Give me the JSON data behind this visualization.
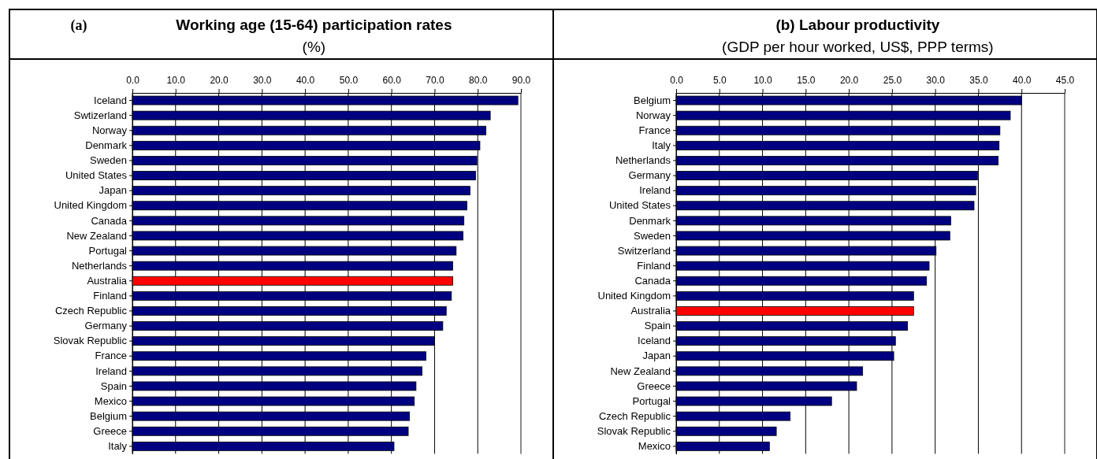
{
  "chart_data": [
    {
      "type": "bar",
      "orientation": "horizontal",
      "title": "Working age (15-64) participation rates",
      "subtitle": "(%)",
      "annotations": [
        "(a)"
      ],
      "categories": [
        "Iceland",
        "Swtizerland",
        "Norway",
        "Denmark",
        "Sweden",
        "United States",
        "Japan",
        "United Kingdom",
        "Canada",
        "New Zealand",
        "Portugal",
        "Netherlands",
        "Australia",
        "Finland",
        "Czech Republic",
        "Germany",
        "Slovak Republic",
        "France",
        "Ireland",
        "Spain",
        "Mexico",
        "Belgium",
        "Greece",
        "Italy"
      ],
      "values": [
        89.3,
        82.9,
        81.9,
        80.5,
        79.8,
        79.5,
        78.2,
        77.5,
        76.8,
        76.6,
        75.0,
        74.2,
        74.2,
        73.9,
        72.7,
        71.9,
        69.9,
        68.0,
        67.1,
        65.7,
        65.3,
        64.2,
        63.9,
        60.6
      ],
      "colors": [
        "#000080",
        "#000080",
        "#000080",
        "#000080",
        "#000080",
        "#000080",
        "#000080",
        "#000080",
        "#000080",
        "#000080",
        "#000080",
        "#000080",
        "#ff0000",
        "#000080",
        "#000080",
        "#000080",
        "#000080",
        "#000080",
        "#000080",
        "#000080",
        "#000080",
        "#000080",
        "#000080",
        "#000080"
      ],
      "xlim": [
        0,
        90
      ],
      "xticks": [
        {
          "value": 0,
          "label": "0.0"
        },
        {
          "value": 10,
          "label": "10.0"
        },
        {
          "value": 20,
          "label": "20.0"
        },
        {
          "value": 30,
          "label": "30.0"
        },
        {
          "value": 40,
          "label": "40.0"
        },
        {
          "value": 50,
          "label": "50.0"
        },
        {
          "value": 60,
          "label": "60.0"
        },
        {
          "value": 70,
          "label": "70.0"
        },
        {
          "value": 80,
          "label": "80.0"
        },
        {
          "value": 90,
          "label": "90.0"
        }
      ],
      "grid": "x"
    },
    {
      "type": "bar",
      "orientation": "horizontal",
      "title": "(b) Labour productivity",
      "subtitle": "(GDP per hour worked, US$, PPP terms)",
      "categories": [
        "Belgium",
        "Norway",
        "France",
        "Italy",
        "Netherlands",
        "Germany",
        "Ireland",
        "United States",
        "Denmark",
        "Sweden",
        "Switzerland",
        "Finland",
        "Canada",
        "United Kingdom",
        "Australia",
        "Spain",
        "Iceland",
        "Japan",
        "New Zealand",
        "Greece",
        "Portugal",
        "Czech Republic",
        "Slovak Republic",
        "Mexico"
      ],
      "values": [
        40.0,
        38.7,
        37.5,
        37.4,
        37.3,
        34.9,
        34.7,
        34.5,
        31.8,
        31.7,
        30.1,
        29.3,
        29.0,
        27.5,
        27.5,
        26.8,
        25.4,
        25.2,
        21.6,
        20.9,
        18.0,
        13.2,
        11.6,
        10.8
      ],
      "colors": [
        "#000080",
        "#000080",
        "#000080",
        "#000080",
        "#000080",
        "#000080",
        "#000080",
        "#000080",
        "#000080",
        "#000080",
        "#000080",
        "#000080",
        "#000080",
        "#000080",
        "#ff0000",
        "#000080",
        "#000080",
        "#000080",
        "#000080",
        "#000080",
        "#000080",
        "#000080",
        "#000080",
        "#000080"
      ],
      "xlim": [
        0,
        45
      ],
      "xticks": [
        {
          "value": 0,
          "label": "0.0"
        },
        {
          "value": 5,
          "label": "5.0"
        },
        {
          "value": 10,
          "label": "10.0"
        },
        {
          "value": 15,
          "label": "15.0"
        },
        {
          "value": 20,
          "label": "20.0"
        },
        {
          "value": 25,
          "label": "25.0"
        },
        {
          "value": 30,
          "label": "30.0"
        },
        {
          "value": 35,
          "label": "35.0"
        },
        {
          "value": 40,
          "label": "40.0"
        },
        {
          "value": 45,
          "label": "45.0"
        }
      ],
      "grid": "x"
    }
  ]
}
